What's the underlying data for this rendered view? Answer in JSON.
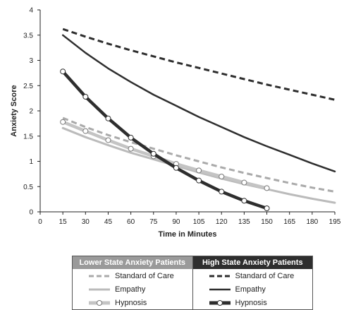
{
  "chart_data": {
    "type": "line",
    "xlabel": "Time in Minutes",
    "ylabel": "Anxiety Score",
    "xlim": [
      0,
      195
    ],
    "ylim": [
      0,
      4
    ],
    "xticks": [
      0,
      15,
      30,
      45,
      60,
      75,
      90,
      105,
      120,
      135,
      150,
      165,
      180,
      195
    ],
    "yticks": [
      0,
      0.5,
      1,
      1.5,
      2,
      2.5,
      3,
      3.5,
      4
    ],
    "ytick_labels": [
      "0",
      "0.5",
      "1",
      "1.5",
      "2",
      "2.5",
      "3",
      "3.5",
      "4"
    ],
    "grid": false,
    "legend_position": "bottom",
    "legend_groups": [
      {
        "title": "Lower State Anxiety Patients",
        "color": "#9a9a9a"
      },
      {
        "title": "High State Anxiety Patients",
        "color": "#2e2e2e"
      }
    ],
    "series": [
      {
        "name": "Standard of Care",
        "group": 0,
        "color": "#aaaaaa",
        "style": "dashed",
        "markers": false,
        "x": [
          15,
          30,
          45,
          60,
          75,
          90,
          105,
          120,
          135,
          150,
          165,
          180,
          195
        ],
        "y": [
          1.86,
          1.68,
          1.52,
          1.38,
          1.25,
          1.12,
          1.0,
          0.88,
          0.77,
          0.67,
          0.57,
          0.48,
          0.4
        ]
      },
      {
        "name": "Empathy",
        "group": 0,
        "color": "#bbbbbb",
        "style": "solid",
        "markers": false,
        "x": [
          15,
          30,
          45,
          60,
          75,
          90,
          105,
          120,
          135,
          150,
          165,
          180,
          195
        ],
        "y": [
          1.66,
          1.48,
          1.32,
          1.17,
          1.04,
          0.91,
          0.78,
          0.66,
          0.55,
          0.45,
          0.35,
          0.26,
          0.18
        ]
      },
      {
        "name": "Hypnosis",
        "group": 0,
        "color": "#c4c4c4",
        "style": "solid-thick",
        "markers": true,
        "x": [
          15,
          30,
          45,
          60,
          75,
          90,
          105,
          120,
          135,
          150
        ],
        "y": [
          1.78,
          1.6,
          1.42,
          1.25,
          1.1,
          0.95,
          0.82,
          0.7,
          0.58,
          0.47
        ]
      },
      {
        "name": "Standard of Care",
        "group": 1,
        "color": "#2e2e2e",
        "style": "dashed",
        "markers": false,
        "x": [
          15,
          30,
          45,
          60,
          75,
          90,
          105,
          120,
          135,
          150,
          165,
          180,
          195
        ],
        "y": [
          3.62,
          3.47,
          3.33,
          3.2,
          3.08,
          2.96,
          2.85,
          2.74,
          2.63,
          2.52,
          2.42,
          2.32,
          2.22
        ]
      },
      {
        "name": "Empathy",
        "group": 1,
        "color": "#2e2e2e",
        "style": "solid",
        "markers": false,
        "x": [
          15,
          30,
          45,
          60,
          75,
          90,
          105,
          120,
          135,
          150,
          165,
          180,
          195
        ],
        "y": [
          3.5,
          3.15,
          2.84,
          2.57,
          2.32,
          2.1,
          1.88,
          1.68,
          1.48,
          1.3,
          1.13,
          0.96,
          0.8
        ]
      },
      {
        "name": "Hypnosis",
        "group": 1,
        "color": "#2e2e2e",
        "style": "solid-thick",
        "markers": true,
        "x": [
          15,
          30,
          45,
          60,
          75,
          90,
          105,
          120,
          135,
          150
        ],
        "y": [
          2.78,
          2.28,
          1.85,
          1.47,
          1.15,
          0.87,
          0.62,
          0.4,
          0.22,
          0.07
        ]
      }
    ]
  }
}
